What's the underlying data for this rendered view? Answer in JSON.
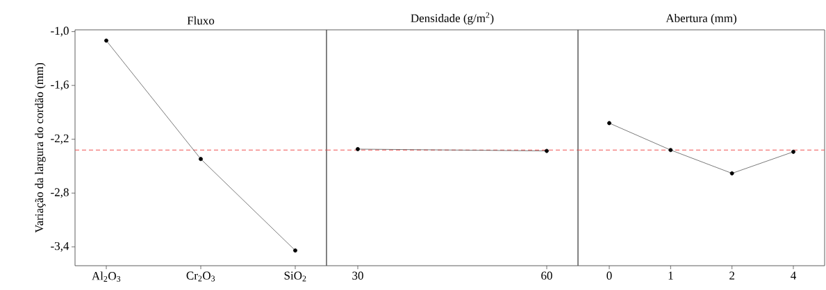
{
  "chart_data": [
    {
      "type": "line",
      "title": "Fluxo",
      "ylabel": "Variação da largura do cordão (mm)",
      "categories": [
        "Al$_{2}$O$_{3}$",
        "Cr$_{2}$O$_{3}$",
        "SiO$_{2}$"
      ],
      "values": [
        -1.1,
        -2.42,
        -3.44
      ],
      "color": "#000000",
      "marker": "circle",
      "line_style": "solid",
      "ylim": [
        -3.61,
        -0.98
      ],
      "yticks": [
        {
          "value": -1.0,
          "label": "-1,0"
        },
        {
          "value": -1.6,
          "label": "-1,6"
        },
        {
          "value": -2.2,
          "label": "-2,2"
        },
        {
          "value": -2.8,
          "label": "-2,8"
        },
        {
          "value": -3.4,
          "label": "-3,4"
        }
      ],
      "ref_lines": [
        {
          "axis": "y",
          "value": -2.32,
          "color": "#f05050",
          "line_style": "dashed"
        }
      ]
    },
    {
      "type": "line",
      "title": "Densidade (g/m$^{2}$)",
      "categories": [
        "30",
        "60"
      ],
      "values": [
        -2.31,
        -2.33
      ],
      "color": "#000000",
      "marker": "circle",
      "line_style": "solid",
      "ylim": [
        -3.61,
        -0.98
      ],
      "tick_labels": "x",
      "ref_lines": [
        {
          "axis": "y",
          "value": -2.32,
          "color": "#f05050",
          "line_style": "dashed"
        }
      ]
    },
    {
      "type": "line",
      "title": "Abertura (mm)",
      "categories": [
        "0",
        "1",
        "2",
        "4"
      ],
      "values": [
        -2.02,
        -2.32,
        -2.58,
        -2.34
      ],
      "color": "#000000",
      "marker": "circle",
      "line_style": "solid",
      "ylim": [
        -3.61,
        -0.98
      ],
      "tick_labels": "x",
      "ref_lines": [
        {
          "axis": "y",
          "value": -2.32,
          "color": "#f05050",
          "line_style": "dashed"
        }
      ]
    }
  ]
}
